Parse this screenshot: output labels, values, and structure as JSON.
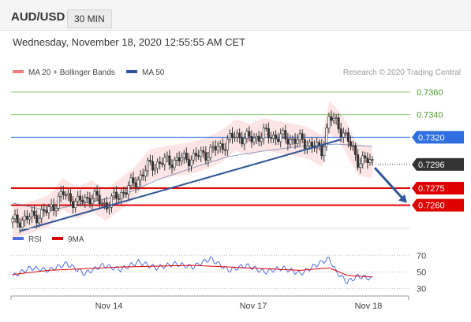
{
  "header": {
    "symbol": "AUD/USD",
    "timeframe": "30 MIN"
  },
  "datetime": "Wednesday, November 18, 2020 12:55:55 AM CET",
  "legend": {
    "ma20": {
      "label": "MA 20 + Bollinger Bands",
      "color": "#f08080"
    },
    "ma50": {
      "label": "MA 50",
      "color": "#2f5597"
    }
  },
  "credit": "Research © 2020 Trading Central",
  "rsi_legend": {
    "rsi": {
      "label": "RSI",
      "color": "#4f6fe0"
    },
    "ma9": {
      "label": "9MA",
      "color": "#e00000"
    }
  },
  "chart_data": {
    "type": "candlestick",
    "instrument": "AUD/USD",
    "interval": "30 MIN",
    "ylim": [
      0.7243,
      0.7369
    ],
    "current_price": 0.7296,
    "levels": [
      {
        "value": 0.736,
        "label": "0.7360",
        "style": "green",
        "color": "#8cc76e"
      },
      {
        "value": 0.734,
        "label": "0.7340",
        "style": "green",
        "color": "#8cc76e"
      },
      {
        "value": 0.732,
        "label": "0.7320",
        "style": "blue",
        "color": "#2f6fe0"
      },
      {
        "value": 0.7296,
        "label": "0.7296",
        "style": "current",
        "color": "#333333"
      },
      {
        "value": 0.7275,
        "label": "0.7275",
        "style": "red",
        "color": "#e00000"
      },
      {
        "value": 0.726,
        "label": "0.7260",
        "style": "red",
        "color": "#e00000"
      }
    ],
    "x_ticks": [
      "Nov 14",
      "Nov 17",
      "Nov 18"
    ],
    "price_path": [
      [
        0,
        0.7245
      ],
      [
        6,
        0.725
      ],
      [
        10,
        0.7255
      ],
      [
        14,
        0.727
      ],
      [
        18,
        0.7262
      ],
      [
        22,
        0.7268
      ],
      [
        26,
        0.726
      ],
      [
        30,
        0.727
      ],
      [
        34,
        0.728
      ],
      [
        38,
        0.7295
      ],
      [
        42,
        0.7298
      ],
      [
        46,
        0.73
      ],
      [
        50,
        0.7302
      ],
      [
        54,
        0.7306
      ],
      [
        58,
        0.7312
      ],
      [
        62,
        0.7322
      ],
      [
        66,
        0.7318
      ],
      [
        70,
        0.7323
      ],
      [
        74,
        0.732
      ],
      [
        78,
        0.7318
      ],
      [
        82,
        0.7315
      ],
      [
        86,
        0.7308
      ],
      [
        88,
        0.7338
      ],
      [
        90,
        0.7332
      ],
      [
        92,
        0.7324
      ],
      [
        94,
        0.7312
      ],
      [
        96,
        0.73
      ],
      [
        100,
        0.7298
      ]
    ],
    "ma20_band_half_width": 0.0014,
    "ma50_path": [
      [
        0,
        0.7262
      ],
      [
        10,
        0.7255
      ],
      [
        20,
        0.7262
      ],
      [
        30,
        0.7268
      ],
      [
        40,
        0.7282
      ],
      [
        50,
        0.7293
      ],
      [
        60,
        0.7303
      ],
      [
        70,
        0.7308
      ],
      [
        80,
        0.7312
      ],
      [
        90,
        0.7314
      ],
      [
        100,
        0.7312
      ]
    ],
    "trendline": {
      "from": [
        2,
        0.7237
      ],
      "to": [
        100,
        0.7318
      ]
    },
    "forecast_arrow": {
      "from": [
        0.7293
      ],
      "to": [
        0.7262
      ]
    },
    "rsi": {
      "ticks": [
        70,
        50,
        30
      ],
      "ylim": [
        25,
        75
      ],
      "rsi_path": [
        [
          0,
          45
        ],
        [
          5,
          55
        ],
        [
          10,
          52
        ],
        [
          15,
          60
        ],
        [
          20,
          48
        ],
        [
          25,
          58
        ],
        [
          30,
          53
        ],
        [
          35,
          62
        ],
        [
          40,
          55
        ],
        [
          45,
          60
        ],
        [
          50,
          56
        ],
        [
          55,
          66
        ],
        [
          60,
          52
        ],
        [
          65,
          58
        ],
        [
          70,
          50
        ],
        [
          75,
          55
        ],
        [
          80,
          48
        ],
        [
          85,
          60
        ],
        [
          88,
          66
        ],
        [
          90,
          50
        ],
        [
          93,
          38
        ],
        [
          96,
          45
        ],
        [
          100,
          42
        ]
      ],
      "ma9_path": [
        [
          0,
          47
        ],
        [
          10,
          52
        ],
        [
          20,
          54
        ],
        [
          30,
          56
        ],
        [
          40,
          57
        ],
        [
          50,
          58
        ],
        [
          60,
          56
        ],
        [
          70,
          54
        ],
        [
          80,
          52
        ],
        [
          88,
          55
        ],
        [
          93,
          46
        ],
        [
          100,
          44
        ]
      ]
    }
  }
}
